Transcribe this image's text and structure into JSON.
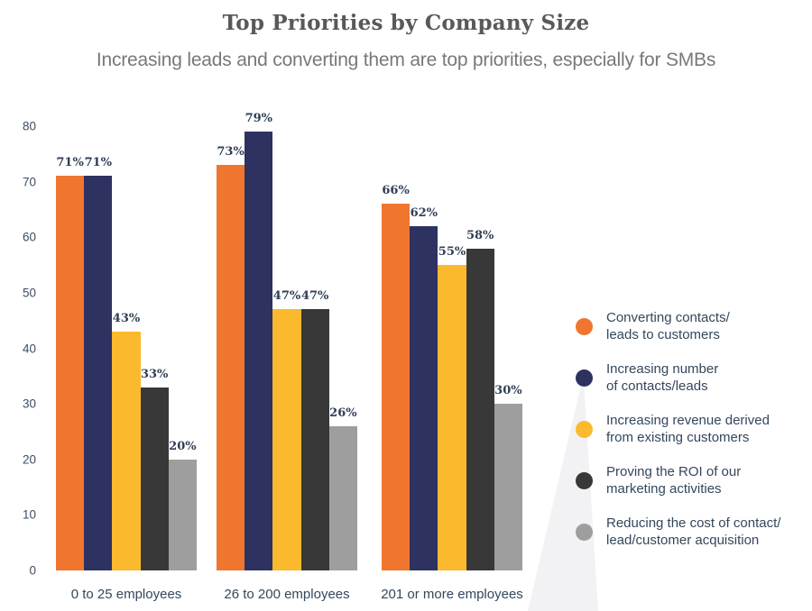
{
  "title": "Top Priorities by Company Size",
  "subtitle": "Increasing leads and converting them are top priorities, especially for SMBs",
  "chart_data": {
    "type": "bar",
    "title": "Top Priorities by Company Size",
    "subtitle": "Increasing leads and converting them are top priorities, especially for SMBs",
    "categories": [
      "0 to 25 employees",
      "26 to 200 employees",
      "201 or more employees"
    ],
    "series": [
      {
        "name": "Converting contacts/\nleads to customers",
        "color": "#f0752f",
        "values": [
          71,
          73,
          66
        ]
      },
      {
        "name": "Increasing number\nof contacts/leads",
        "color": "#2d3261",
        "values": [
          71,
          79,
          62
        ]
      },
      {
        "name": "Increasing revenue derived\nfrom existing customers",
        "color": "#fbb92d",
        "values": [
          43,
          47,
          55
        ]
      },
      {
        "name": "Proving the ROI of our\nmarketing activities",
        "color": "#383838",
        "values": [
          33,
          47,
          58
        ]
      },
      {
        "name": "Reducing the cost of contact/\nlead/customer acquisition",
        "color": "#9e9e9e",
        "values": [
          20,
          26,
          30
        ]
      }
    ],
    "value_suffix": "%",
    "ylim": [
      0,
      80
    ],
    "ytick_step": 10,
    "grid": false,
    "legend_position": "right",
    "data_labels": true
  },
  "colors": {
    "title_text": "#58595b",
    "subtitle_text": "#77787b",
    "axis_text": "#3e4c63",
    "label_text": "#2f3e55",
    "legend_text": "#33475b",
    "watermark": "#f2f2f5"
  }
}
